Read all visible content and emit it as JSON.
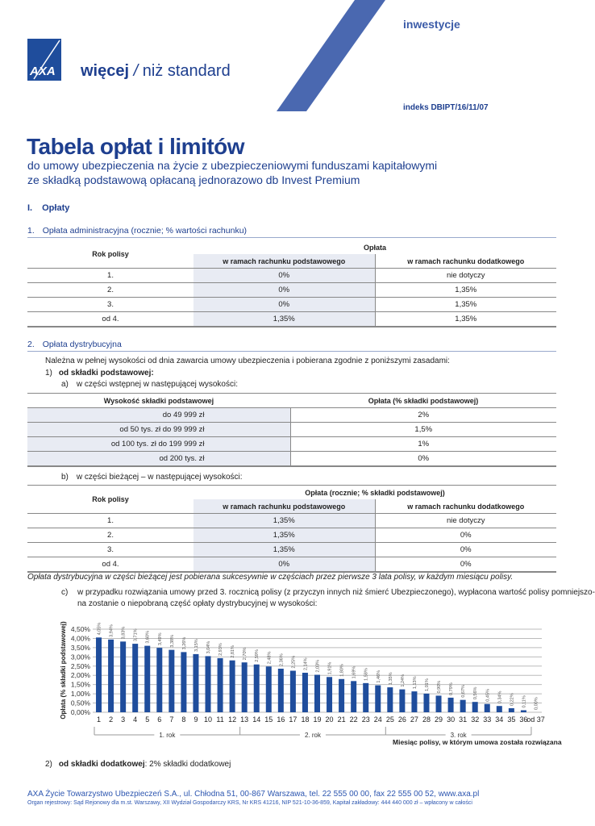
{
  "header": {
    "category": "inwestycje",
    "logo_text": "AXA",
    "slogan_bold": "więcej",
    "slogan_rest": "niż standard",
    "index": "indeks DBIPT/16/11/07"
  },
  "title": "Tabela opłat i limitów",
  "subtitle": [
    "do umowy ubezpieczenia na życie z ubezpieczeniowymi funduszami kapitałowymi",
    "ze składką podstawową opłacaną jednorazowo db Invest Premium"
  ],
  "section": {
    "num": "I.",
    "label": "Opłaty"
  },
  "s1": {
    "num": "1.",
    "label": "Opłata administracyjna (rocznie; % wartości rachunku)",
    "table": {
      "col0": "Rok polisy",
      "group": "Opłata",
      "col1": "w ramach rachunku podstawowego",
      "col2": "w ramach rachunku dodatkowego",
      "rows": [
        [
          "1.",
          "0%",
          "nie dotyczy"
        ],
        [
          "2.",
          "0%",
          "1,35%"
        ],
        [
          "3.",
          "0%",
          "1,35%"
        ],
        [
          "od 4.",
          "1,35%",
          "1,35%"
        ]
      ]
    }
  },
  "s2": {
    "num": "2.",
    "label": "Opłata dystrybucyjna",
    "intro": "Należna w pełnej wysokości od dnia zawarcia umowy ubezpieczenia i pobierana zgodnie z poniższymi zasadami:",
    "p1_num": "1)",
    "p1_label": "od składki podstawowej:",
    "a_num": "a)",
    "a_label": "w części wstępnej w następującej wysokości:",
    "table2": {
      "col0": "Wysokość składki podstawowej",
      "col1": "Opłata (% składki podstawowej)",
      "rows": [
        [
          "do 49 999 zł",
          "2%"
        ],
        [
          "od 50 tys. zł do 99 999 zł",
          "1,5%"
        ],
        [
          "od 100 tys. zł do 199 999 zł",
          "1%"
        ],
        [
          "od 200 tys. zł",
          "0%"
        ]
      ]
    },
    "b_num": "b)",
    "b_label": "w części bieżącej – w następującej wysokości:",
    "table3": {
      "col0": "Rok polisy",
      "group": "Opłata (rocznie; % składki podstawowej)",
      "col1": "w ramach rachunku podstawowego",
      "col2": "w ramach rachunku dodatkowego",
      "rows": [
        [
          "1.",
          "1,35%",
          "nie dotyczy"
        ],
        [
          "2.",
          "1,35%",
          "0%"
        ],
        [
          "3.",
          "1,35%",
          "0%"
        ],
        [
          "od 4.",
          "0%",
          "0%"
        ]
      ]
    },
    "note": "Opłata dystrybucyjna w części bieżącej jest pobierana sukcesywnie w częściach przez pierwsze 3 lata polisy, w każdym miesiącu polisy.",
    "c_num": "c)",
    "c_line1": "w przypadku rozwiązania umowy przed 3. rocznicą polisy (z przyczyn innych niż śmierć Ubezpieczonego), wypłacona wartość polisy pomniejszo-",
    "c_line2": "na zostanie o niepobraną część opłaty dystrybucyjnej w wysokości:",
    "p2_num": "2)",
    "p2_label": "od składki dodatkowej",
    "p2_rest": ": 2% składki dodatkowej"
  },
  "chart_data": {
    "type": "bar",
    "title": "",
    "ylabel": "Opłata (% składki podstawowej)",
    "xlabel": "Miesiąc polisy, w którym umowa została rozwiązana",
    "ylim": [
      0,
      4.5
    ],
    "yticks": [
      "0,00%",
      "0,50%",
      "1,00%",
      "1,50%",
      "2,00%",
      "2,50%",
      "3,00%",
      "3,50%",
      "4,00%",
      "4,50%"
    ],
    "categories": [
      "1",
      "2",
      "3",
      "4",
      "5",
      "6",
      "7",
      "8",
      "9",
      "10",
      "11",
      "12",
      "13",
      "14",
      "15",
      "16",
      "17",
      "18",
      "19",
      "20",
      "21",
      "22",
      "23",
      "24",
      "25",
      "26",
      "27",
      "28",
      "29",
      "30",
      "31",
      "32",
      "33",
      "34",
      "35",
      "36",
      "od 37"
    ],
    "values": [
      4.05,
      3.94,
      3.83,
      3.71,
      3.6,
      3.49,
      3.38,
      3.26,
      3.15,
      3.04,
      2.93,
      2.81,
      2.7,
      2.59,
      2.48,
      2.36,
      2.25,
      2.14,
      2.03,
      1.91,
      1.8,
      1.69,
      1.58,
      1.46,
      1.35,
      1.24,
      1.13,
      1.01,
      0.9,
      0.79,
      0.67,
      0.56,
      0.45,
      0.34,
      0.22,
      0.11,
      0.0
    ],
    "labels": [
      "4,05%",
      "3,94%",
      "3,83%",
      "3,71%",
      "3,60%",
      "3,49%",
      "3,38%",
      "3,26%",
      "3,15%",
      "3,04%",
      "2,93%",
      "2,81%",
      "2,70%",
      "2,59%",
      "2,48%",
      "2,36%",
      "2,25%",
      "2,14%",
      "2,03%",
      "1,91%",
      "1,80%",
      "1,69%",
      "1,58%",
      "1,46%",
      "1,35%",
      "1,24%",
      "1,13%",
      "1,01%",
      "0,90%",
      "0,79%",
      "0,67%",
      "0,56%",
      "0,45%",
      "0,34%",
      "0,22%",
      "0,11%",
      "0,00%"
    ],
    "groups": [
      "1. rok",
      "2. rok",
      "3. rok"
    ],
    "bar_color": "#1f4d9c",
    "grid": true
  },
  "footer": {
    "line1": "AXA Życie Towarzystwo Ubezpieczeń S.A., ul. Chłodna 51, 00-867 Warszawa, tel. 22 555 00 00, fax 22 555 00 52, www.axa.pl",
    "line2": "Organ rejestrowy: Sąd Rejonowy dla m.st. Warszawy, XII Wydział Gospodarczy KRS, Nr KRS 41216, NIP 521-10-36-859, Kapitał zakładowy: 444 440 000 zł – wpłacony w całości"
  }
}
